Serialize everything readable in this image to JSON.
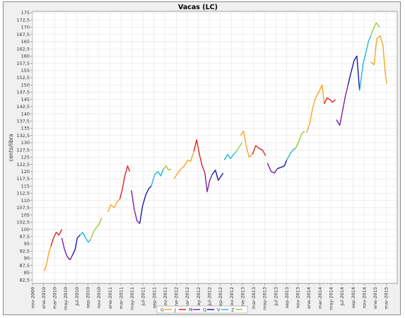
{
  "chart_data": {
    "type": "line",
    "title": "Vacas (LC)",
    "xlabel": "",
    "ylabel": "cents/libra",
    "ylim": [
      81.3,
      175.5
    ],
    "xlim": [
      0,
      66
    ],
    "grid": true,
    "legend_position": "bottom-center",
    "y_ticks": [
      "82,5",
      "85",
      "87,5",
      "90",
      "92,5",
      "95",
      "97,5",
      "100",
      "102,5",
      "105",
      "107,5",
      "110",
      "112,5",
      "115",
      "117,5",
      "120",
      "122,5",
      "125",
      "127,5",
      "130",
      "132,5",
      "135",
      "137,5",
      "140",
      "142,5",
      "145",
      "147,5",
      "150",
      "152,5",
      "155",
      "157,5",
      "160",
      "162,5",
      "165",
      "167,5",
      "170",
      "172,5",
      "175"
    ],
    "x_ticks": [
      "nov-2009",
      "ene-2010",
      "mar-2010",
      "may-2010",
      "jul-2010",
      "sep-2010",
      "nov-2010",
      "ene-2011",
      "mar-2011",
      "may-2011",
      "jul-2011",
      "sep-2011",
      "nov-2011",
      "ene-2012",
      "mar-2012",
      "may-2012",
      "jul-2012",
      "sep-2012",
      "nov-2012",
      "ene-2013",
      "mar-2013",
      "may-2013",
      "jul-2013",
      "sep-2013",
      "nov-2013",
      "ene-2014",
      "mar-2014",
      "may-2014",
      "jul-2014",
      "sep-2014",
      "nov-2014",
      "ene-2015",
      "mar-2015"
    ],
    "series": [
      {
        "name": "G",
        "color": "#f5a623",
        "segments": [
          [
            [
              2.1,
              85.5
            ],
            [
              2.5,
              87.5
            ],
            [
              2.9,
              91.5
            ],
            [
              3.3,
              94
            ]
          ],
          [
            [
              13.6,
              106
            ],
            [
              14.2,
              108.5
            ],
            [
              14.8,
              107.5
            ],
            [
              15.3,
              109.5
            ],
            [
              15.8,
              110.5
            ]
          ],
          [
            [
              25.6,
              117.5
            ],
            [
              26.3,
              119.5
            ],
            [
              26.9,
              121
            ],
            [
              27.5,
              122
            ],
            [
              28.1,
              124
            ],
            [
              28.6,
              123.5
            ],
            [
              29.2,
              127
            ]
          ],
          [
            [
              37.6,
              132.5
            ],
            [
              38.2,
              134
            ],
            [
              38.7,
              128.5
            ],
            [
              39.2,
              125
            ],
            [
              39.8,
              126
            ]
          ],
          [
            [
              49.6,
              133.5
            ],
            [
              50.2,
              137
            ],
            [
              50.7,
              142
            ],
            [
              51.2,
              145.5
            ],
            [
              51.8,
              147.5
            ],
            [
              52.4,
              150
            ],
            [
              52.8,
              143.5
            ]
          ],
          [
            [
              61.2,
              158
            ],
            [
              61.8,
              157
            ],
            [
              62.3,
              166
            ],
            [
              62.9,
              167
            ],
            [
              63.4,
              164
            ],
            [
              63.8,
              155
            ],
            [
              64.1,
              150.5
            ]
          ]
        ]
      },
      {
        "name": "J",
        "color": "#e02020",
        "segments": [
          [
            [
              3.3,
              94
            ],
            [
              3.8,
              97
            ],
            [
              4.3,
              99
            ],
            [
              4.8,
              98
            ],
            [
              5.3,
              100
            ]
          ],
          [
            [
              15.8,
              110.5
            ],
            [
              16.2,
              113.5
            ],
            [
              16.7,
              118.5
            ],
            [
              17.2,
              122
            ],
            [
              17.6,
              120
            ]
          ],
          [
            [
              29.2,
              127
            ],
            [
              29.7,
              131
            ],
            [
              30.2,
              126
            ],
            [
              30.7,
              122
            ],
            [
              31.2,
              119.5
            ]
          ],
          [
            [
              39.8,
              126
            ],
            [
              40.4,
              129
            ],
            [
              41.0,
              128
            ],
            [
              41.6,
              127.5
            ],
            [
              42.2,
              125.5
            ]
          ],
          [
            [
              52.8,
              143.5
            ],
            [
              53.3,
              145.5
            ],
            [
              53.8,
              145
            ],
            [
              54.3,
              144
            ],
            [
              54.8,
              145
            ]
          ]
        ]
      },
      {
        "name": "M",
        "color": "#7a1fa2",
        "segments": [
          [
            [
              5.3,
              97
            ],
            [
              5.8,
              93
            ],
            [
              6.3,
              90.5
            ],
            [
              6.8,
              89.5
            ],
            [
              7.2,
              91
            ]
          ],
          [
            [
              17.9,
              113.5
            ],
            [
              18.4,
              107
            ],
            [
              18.9,
              103
            ],
            [
              19.4,
              102
            ]
          ],
          [
            [
              31.2,
              119.5
            ],
            [
              31.6,
              113
            ],
            [
              32.0,
              116.5
            ],
            [
              32.5,
              119
            ]
          ],
          [
            [
              42.5,
              123
            ],
            [
              43.2,
              120
            ],
            [
              43.8,
              119.5
            ],
            [
              44.3,
              121
            ]
          ],
          [
            [
              55.0,
              138
            ],
            [
              55.6,
              136
            ],
            [
              56.1,
              141
            ],
            [
              56.6,
              146
            ],
            [
              57.1,
              150
            ]
          ]
        ]
      },
      {
        "name": "Q",
        "color": "#1a1aa8",
        "segments": [
          [
            [
              7.2,
              91
            ],
            [
              7.7,
              93
            ],
            [
              8.1,
              97
            ],
            [
              8.6,
              98
            ]
          ],
          [
            [
              19.4,
              102
            ],
            [
              19.9,
              108
            ],
            [
              20.5,
              112
            ],
            [
              21.0,
              114
            ],
            [
              21.5,
              115
            ]
          ],
          [
            [
              32.5,
              119
            ],
            [
              33.1,
              120.5
            ],
            [
              33.6,
              117
            ],
            [
              34.0,
              118
            ],
            [
              34.5,
              119.5
            ]
          ],
          [
            [
              44.3,
              121
            ],
            [
              45.0,
              121.5
            ],
            [
              45.6,
              122
            ],
            [
              46.0,
              124
            ]
          ],
          [
            [
              57.1,
              150
            ],
            [
              57.6,
              154
            ],
            [
              58.2,
              158.5
            ],
            [
              58.7,
              160
            ],
            [
              59.2,
              148
            ]
          ]
        ]
      },
      {
        "name": "V",
        "color": "#20b8d8",
        "segments": [
          [
            [
              8.6,
              98
            ],
            [
              9.1,
              99
            ],
            [
              9.6,
              97
            ],
            [
              10.1,
              95.5
            ],
            [
              10.5,
              96.5
            ]
          ],
          [
            [
              21.5,
              115
            ],
            [
              22.1,
              119
            ],
            [
              22.7,
              120
            ],
            [
              23.2,
              118.5
            ],
            [
              23.7,
              121
            ]
          ],
          [
            [
              34.7,
              124
            ],
            [
              35.3,
              126
            ],
            [
              35.8,
              124.5
            ],
            [
              36.4,
              126
            ],
            [
              36.9,
              127
            ]
          ],
          [
            [
              46.0,
              124
            ],
            [
              46.6,
              126
            ],
            [
              47.1,
              127.5
            ],
            [
              47.6,
              128
            ]
          ],
          [
            [
              59.2,
              148
            ],
            [
              59.8,
              157
            ],
            [
              60.3,
              161
            ],
            [
              60.8,
              165
            ],
            [
              61.2,
              167
            ]
          ]
        ]
      },
      {
        "name": "Z",
        "color": "#9acd32",
        "segments": [
          [
            [
              10.5,
              96.5
            ],
            [
              11.0,
              99
            ],
            [
              11.5,
              100.5
            ],
            [
              12.0,
              101.5
            ],
            [
              12.5,
              104
            ]
          ],
          [
            [
              23.7,
              121
            ],
            [
              24.2,
              122
            ],
            [
              24.6,
              120.5
            ],
            [
              25.1,
              121
            ]
          ],
          [
            [
              36.9,
              127
            ],
            [
              37.4,
              128.5
            ],
            [
              37.9,
              130
            ]
          ],
          [
            [
              47.6,
              128
            ],
            [
              48.2,
              130.5
            ],
            [
              48.7,
              133
            ],
            [
              49.2,
              134
            ]
          ],
          [
            [
              61.2,
              167
            ],
            [
              61.7,
              169.5
            ],
            [
              62.2,
              171.5
            ],
            [
              62.8,
              170
            ]
          ]
        ]
      }
    ]
  }
}
